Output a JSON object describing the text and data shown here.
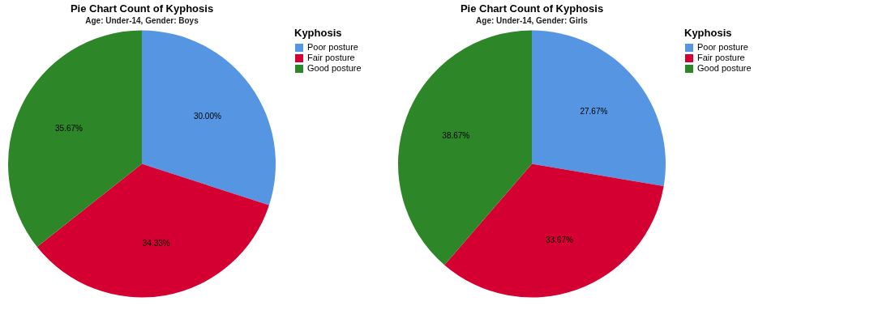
{
  "chart_data": [
    {
      "type": "pie",
      "title": "Pie Chart Count of Kyphosis",
      "subtitle": "Age: Under-14, Gender: Boys",
      "legend_title": "Kyphosis",
      "legend": "right",
      "categories": [
        "Poor posture",
        "Fair posture",
        "Good posture"
      ],
      "values": [
        30.0,
        34.33,
        35.67
      ],
      "colors": [
        "#5595e2",
        "#d50032",
        "#2d8628"
      ],
      "value_labels": [
        "30.00%",
        "34.33%",
        "35.67%"
      ]
    },
    {
      "type": "pie",
      "title": "Pie Chart Count of Kyphosis",
      "subtitle": "Age: Under-14, Gender: Girls",
      "legend_title": "Kyphosis",
      "legend": "right",
      "categories": [
        "Poor posture",
        "Fair posture",
        "Good posture"
      ],
      "values": [
        27.67,
        33.67,
        38.67
      ],
      "colors": [
        "#5595e2",
        "#d50032",
        "#2d8628"
      ],
      "value_labels": [
        "27.67%",
        "33.67%",
        "38.67%"
      ]
    }
  ]
}
